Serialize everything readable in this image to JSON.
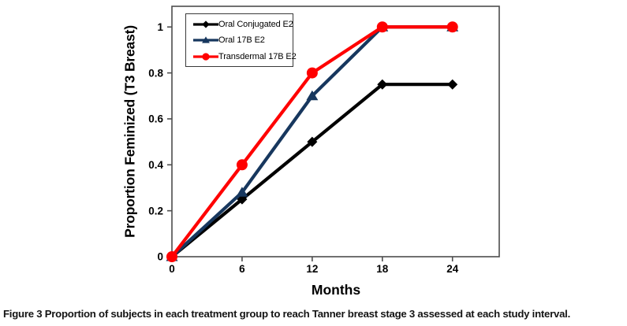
{
  "figure": {
    "caption_label": "Figure 3",
    "caption_text": "Proportion of subjects in each treatment group to reach Tanner breast stage 3 assessed at each study interval."
  },
  "chart_data": {
    "type": "line",
    "title": "",
    "xlabel": "Months",
    "ylabel": "Proportion Feminized (T3 Breast)",
    "x": [
      0,
      6,
      12,
      18,
      24
    ],
    "x_ticks": [
      0,
      6,
      12,
      18,
      24
    ],
    "y_ticks": [
      0,
      0.2,
      0.4,
      0.6,
      0.8,
      1
    ],
    "xlim": [
      0,
      28
    ],
    "ylim": [
      0,
      1.09
    ],
    "grid": false,
    "legend_position": "top-left-inside",
    "axis_color": "#4d4d4d",
    "series": [
      {
        "name": "Oral Conjugated E2",
        "color": "#000000",
        "marker": "diamond",
        "values": [
          0,
          0.25,
          0.5,
          0.75,
          0.75
        ]
      },
      {
        "name": "Oral 17B E2",
        "color": "#17375E",
        "marker": "triangle",
        "values": [
          0,
          0.28,
          0.7,
          1.0,
          1.0
        ]
      },
      {
        "name": "Transdermal 17B E2",
        "color": "#FF0000",
        "marker": "circle",
        "values": [
          0,
          0.4,
          0.8,
          1.0,
          1.0
        ]
      }
    ]
  }
}
